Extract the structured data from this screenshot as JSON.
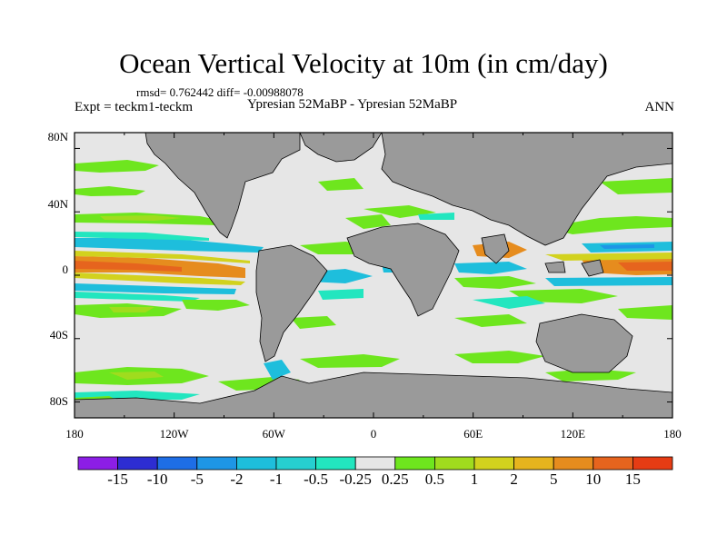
{
  "header": {
    "title": "Ocean Vertical Velocity at 10m (in cm/day)",
    "stats": "rmsd= 0.762442  diff= -0.00988078",
    "experiment": "Expt = teckm1-teckm",
    "comparison": "Ypresian  52MaBP - Ypresian  52MaBP",
    "season": "ANN"
  },
  "chart_data": {
    "type": "heatmap",
    "title": "Ocean Vertical Velocity at 10m (in cm/day)",
    "subtitle": "Ypresian  52MaBP - Ypresian  52MaBP",
    "units": "cm/day",
    "projection": "cylindrical equidistant",
    "xlim": [
      -180,
      180
    ],
    "ylim": [
      -90,
      90
    ],
    "x_ticks": [
      "180",
      "120W",
      "60W",
      "0",
      "60E",
      "120E",
      "180"
    ],
    "y_ticks": [
      "80N",
      "40N",
      "0",
      "40S",
      "80S"
    ],
    "land_color": "#9a9a9a",
    "missing_color": "#e6e6e6",
    "colorbar": {
      "labels": [
        "-15",
        "-10",
        "-5",
        "-2",
        "-1",
        "-0.5",
        "-0.25",
        "0.25",
        "0.5",
        "1",
        "2",
        "5",
        "10",
        "15"
      ],
      "colors": [
        "#8c1ee6",
        "#2d2dd2",
        "#1e6ee6",
        "#1e96e6",
        "#1ebedc",
        "#26cfd0",
        "#22e6bf",
        "#e6e6e6",
        "#6ee61e",
        "#a0dc1e",
        "#d2d21e",
        "#e6b41e",
        "#e68c1e",
        "#e6641e",
        "#e63c14"
      ]
    },
    "features": [
      {
        "name": "equatorial Pacific upwelling",
        "lon_range": [
          -180,
          -100
        ],
        "lat_range": [
          -4,
          4
        ],
        "value": 10
      },
      {
        "name": "equatorial western Pacific",
        "lon_range": [
          140,
          180
        ],
        "lat_range": [
          -4,
          4
        ],
        "value": 10
      },
      {
        "name": "off-equatorial downwelling bands",
        "lat_range": [
          -12,
          -5
        ],
        "value": -1
      },
      {
        "name": "off-equatorial downwelling bands",
        "lat_range": [
          5,
          12
        ],
        "value": -1
      }
    ]
  }
}
